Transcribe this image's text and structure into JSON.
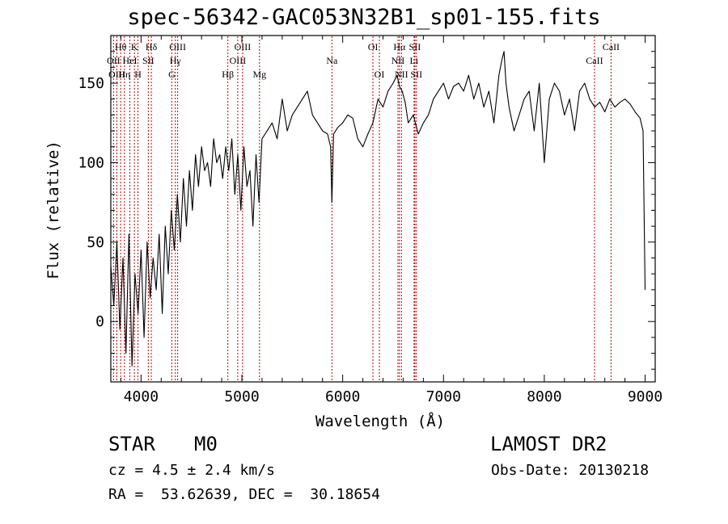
{
  "title": "spec-56342-GAC053N32B1_sp01-155.fits",
  "info": {
    "obj_class": "STAR",
    "subclass": "M0",
    "survey": "LAMOST DR2",
    "cz": "cz = 4.5 ± 2.4 km/s",
    "obs_date": "Obs-Date: 20130218",
    "radec": "RA =  53.62639, DEC =  30.18654"
  },
  "colors": {
    "spectrum": "#000000",
    "line_marker": "#c00000",
    "axes": "#000000"
  },
  "chart_data": {
    "type": "line",
    "title": "spec-56342-GAC053N32B1_sp01-155.fits",
    "xlabel": "Wavelength (Å)",
    "ylabel": "Flux (relative)",
    "xlim": [
      3700,
      9100
    ],
    "ylim": [
      -38,
      180
    ],
    "xticks": [
      4000,
      5000,
      6000,
      7000,
      8000,
      9000
    ],
    "yticks": [
      0,
      50,
      100,
      150
    ],
    "grid": false,
    "legend": "none",
    "series": [
      {
        "x": [
          3700,
          3730,
          3760,
          3790,
          3820,
          3850,
          3880,
          3910,
          3940,
          3970,
          4000,
          4030,
          4060,
          4090,
          4120,
          4150,
          4180,
          4210,
          4240,
          4270,
          4300,
          4330,
          4360,
          4390,
          4420,
          4450,
          4480,
          4510,
          4540,
          4570,
          4600,
          4630,
          4660,
          4690,
          4720,
          4750,
          4780,
          4810,
          4840,
          4870,
          4900,
          4930,
          4960,
          4990,
          5020,
          5050,
          5080,
          5110,
          5140,
          5170,
          5200,
          5250,
          5300,
          5350,
          5400,
          5450,
          5500,
          5550,
          5600,
          5650,
          5700,
          5750,
          5800,
          5850,
          5880,
          5893,
          5910,
          5950,
          6000,
          6050,
          6100,
          6150,
          6200,
          6250,
          6300,
          6350,
          6400,
          6450,
          6500,
          6540,
          6563,
          6590,
          6620,
          6650,
          6700,
          6750,
          6800,
          6850,
          6900,
          6950,
          7000,
          7050,
          7100,
          7150,
          7200,
          7250,
          7300,
          7350,
          7400,
          7450,
          7500,
          7550,
          7580,
          7600,
          7620,
          7650,
          7700,
          7750,
          7800,
          7850,
          7900,
          7950,
          8000,
          8050,
          8100,
          8150,
          8200,
          8250,
          8300,
          8350,
          8400,
          8450,
          8500,
          8550,
          8600,
          8650,
          8700,
          8750,
          8800,
          8850,
          8900,
          8950,
          8980,
          9000
        ],
        "y": [
          35,
          10,
          50,
          -5,
          40,
          -20,
          55,
          -28,
          30,
          5,
          45,
          -10,
          50,
          15,
          40,
          20,
          55,
          5,
          60,
          30,
          70,
          45,
          80,
          50,
          90,
          60,
          95,
          70,
          105,
          85,
          110,
          95,
          100,
          85,
          115,
          100,
          105,
          90,
          110,
          95,
          115,
          80,
          105,
          70,
          110,
          85,
          95,
          60,
          105,
          75,
          115,
          120,
          125,
          115,
          140,
          120,
          130,
          135,
          140,
          145,
          130,
          125,
          120,
          118,
          110,
          75,
          118,
          122,
          125,
          130,
          128,
          115,
          110,
          118,
          125,
          140,
          135,
          145,
          150,
          155,
          148,
          145,
          138,
          125,
          130,
          118,
          125,
          130,
          140,
          145,
          150,
          140,
          148,
          150,
          145,
          155,
          140,
          150,
          135,
          145,
          125,
          155,
          165,
          170,
          150,
          135,
          120,
          130,
          140,
          145,
          120,
          150,
          100,
          140,
          150,
          145,
          130,
          140,
          120,
          145,
          150,
          140,
          135,
          138,
          132,
          140,
          135,
          138,
          140,
          137,
          132,
          128,
          120,
          20
        ]
      }
    ],
    "line_markers": [
      {
        "label": "Hθ",
        "wave": 3798,
        "row": 1
      },
      {
        "label": "OII",
        "wave": 3727,
        "row": 2
      },
      {
        "label": "OIII",
        "wave": 3760,
        "row": 3
      },
      {
        "label": "K",
        "wave": 3934,
        "row": 1
      },
      {
        "label": "HeI",
        "wave": 3889,
        "row": 2
      },
      {
        "label": "Hη",
        "wave": 3835,
        "row": 3
      },
      {
        "label": "H",
        "wave": 3969,
        "row": 3
      },
      {
        "label": "Hδ",
        "wave": 4102,
        "row": 1
      },
      {
        "label": "SII",
        "wave": 4072,
        "row": 2
      },
      {
        "label": "OIII",
        "wave": 4363,
        "row": 1
      },
      {
        "label": "Hγ",
        "wave": 4340,
        "row": 2
      },
      {
        "label": "G",
        "wave": 4305,
        "row": 3
      },
      {
        "label": "OIII",
        "wave": 5007,
        "row": 1
      },
      {
        "label": "OIII",
        "wave": 4959,
        "row": 2
      },
      {
        "label": "Hβ",
        "wave": 4861,
        "row": 3
      },
      {
        "label": "Mg",
        "wave": 5175,
        "row": 3
      },
      {
        "label": "Na",
        "wave": 5893,
        "row": 2
      },
      {
        "label": "OI",
        "wave": 6300,
        "row": 1
      },
      {
        "label": "OI",
        "wave": 6364,
        "row": 3
      },
      {
        "label": "Hα",
        "wave": 6563,
        "row": 1
      },
      {
        "label": "SII",
        "wave": 6716,
        "row": 1
      },
      {
        "label": "NII",
        "wave": 6548,
        "row": 2
      },
      {
        "label": "Li",
        "wave": 6708,
        "row": 2
      },
      {
        "label": "NII",
        "wave": 6583,
        "row": 3
      },
      {
        "label": "SII",
        "wave": 6731,
        "row": 3
      },
      {
        "label": "CaII",
        "wave": 8662,
        "row": 1
      },
      {
        "label": "CaII",
        "wave": 8498,
        "row": 2
      }
    ]
  }
}
